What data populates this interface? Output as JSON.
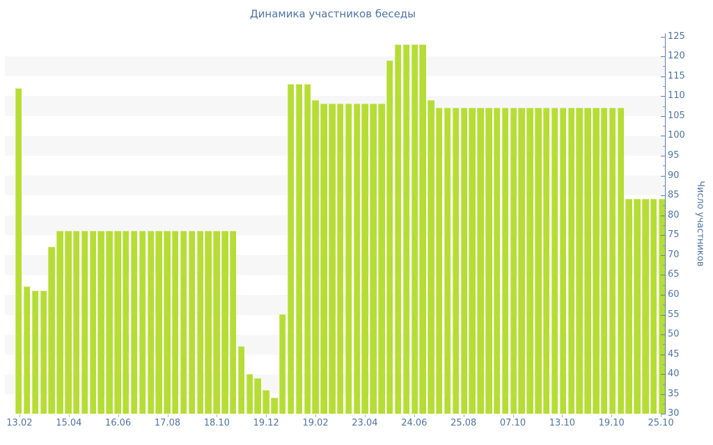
{
  "title": "Динамика участников беседы",
  "chart_data": {
    "type": "bar",
    "title": "Динамика участников беседы",
    "xlabel": "",
    "ylabel": "Число участников",
    "ylim": [
      30,
      130
    ],
    "y_ticks": [
      30,
      35,
      40,
      45,
      50,
      55,
      60,
      65,
      70,
      75,
      80,
      85,
      90,
      95,
      100,
      105,
      110,
      115,
      120,
      125
    ],
    "grid": "alternating horizontal stripe bands every 5 units, y-axis on right side",
    "legend_position": "none",
    "bar_count": 79,
    "x_tick_labels": [
      "13.02",
      "15.04",
      "16.06",
      "17.08",
      "18.10",
      "19.12",
      "19.02",
      "23.04",
      "24.06",
      "25.08",
      "07.10",
      "13.10",
      "19.10",
      "25.10"
    ],
    "x_label_every_n_bars": 6,
    "values": [
      112,
      62,
      61,
      61,
      72,
      76,
      76,
      76,
      76,
      76,
      76,
      76,
      76,
      76,
      76,
      76,
      76,
      76,
      76,
      76,
      76,
      76,
      76,
      76,
      76,
      76,
      76,
      47,
      40,
      39,
      36,
      34,
      55,
      113,
      113,
      113,
      109,
      108,
      108,
      108,
      108,
      108,
      108,
      108,
      108,
      119,
      123,
      123,
      123,
      123,
      109,
      107,
      107,
      107,
      107,
      107,
      107,
      107,
      107,
      107,
      107,
      107,
      107,
      107,
      107,
      107,
      107,
      107,
      107,
      107,
      107,
      107,
      107,
      107,
      84,
      84,
      84,
      84,
      84
    ]
  },
  "style": {
    "bar_color": "#b5dd34",
    "stripe_color": "#f7f7f8",
    "axis_line_color": "#5b7db3",
    "minor_tick_color": "#7d98bf",
    "x_tick_color": "#9db0cc",
    "text_color": "#4d73a5",
    "background_color": "#ffffff"
  }
}
